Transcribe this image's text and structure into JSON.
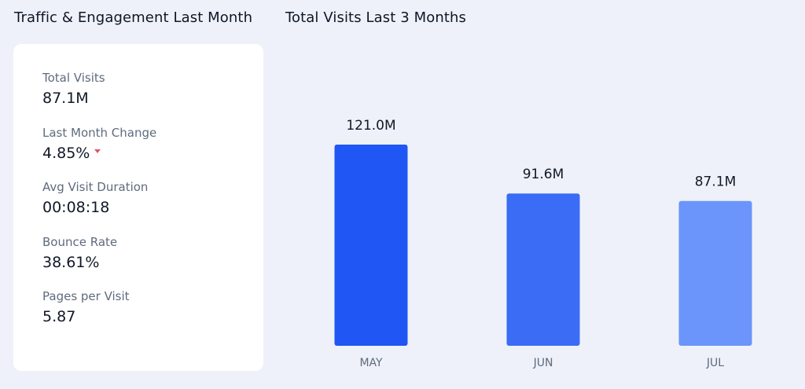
{
  "traffic_section": {
    "title": "Traffic & Engagement Last Month",
    "metrics": [
      {
        "label": "Total Visits",
        "value": "87.1M"
      },
      {
        "label": "Last Month Change",
        "value": "4.85%",
        "trend": "down",
        "trend_icon": "caret-down-icon",
        "trend_color": "#e0556a"
      },
      {
        "label": "Avg Visit Duration",
        "value": "00:08:18"
      },
      {
        "label": "Bounce Rate",
        "value": "38.61%"
      },
      {
        "label": "Pages per Visit",
        "value": "5.87"
      }
    ]
  },
  "visits_section": {
    "title": "Total Visits Last 3 Months"
  },
  "chart_data": {
    "type": "bar",
    "title": "Total Visits Last 3 Months",
    "categories": [
      "MAY",
      "JUN",
      "JUL"
    ],
    "values": [
      121.0,
      91.6,
      87.1
    ],
    "value_labels": [
      "121.0M",
      "91.6M",
      "87.1M"
    ],
    "unit": "M",
    "ylim": [
      0,
      121.0
    ],
    "colors": [
      "#1f56f4",
      "#3a6cf5",
      "#6b95fb"
    ],
    "grid": false,
    "legend": "none"
  }
}
